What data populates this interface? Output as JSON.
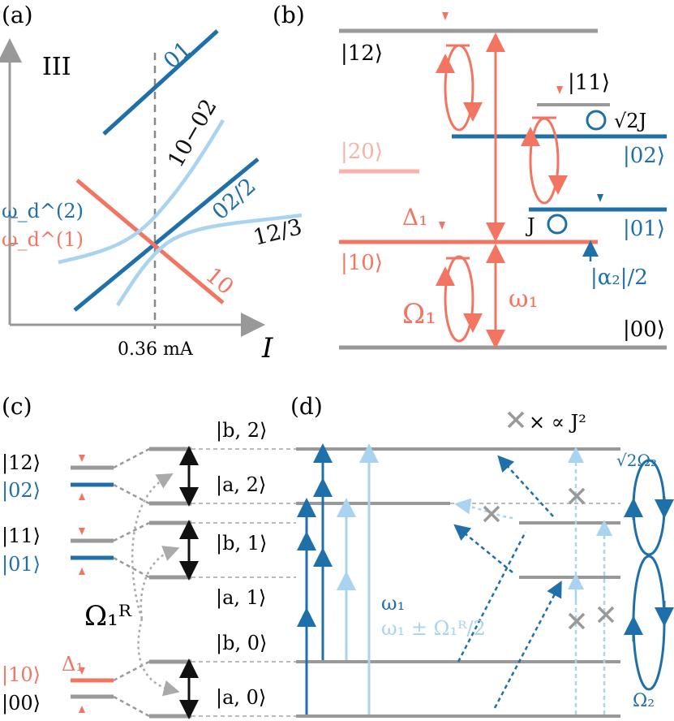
{
  "colors": {
    "dark_blue": "#1f6fa8",
    "light_blue": "#a9d3ee",
    "salmon": "#f27562",
    "pale_salmon": "#f7b3a7",
    "gray": "#999999",
    "black": "#111111"
  },
  "panel_a": {
    "label": "(a)",
    "regime": "III",
    "axis_x": "I",
    "tick_x": "0.36 mA",
    "y_tick_2": "ω_d^(2)",
    "y_tick_1": "ω_d^(1)",
    "line_labels": {
      "l01": "01",
      "l1002": "10−02",
      "l022": "02/2",
      "l123": "12/3",
      "l10": "10"
    }
  },
  "panel_b": {
    "label": "(b)",
    "levels": {
      "k12": "|12⟩",
      "k11": "|11⟩",
      "k20": "|20⟩",
      "k02": "|02⟩",
      "k01": "|01⟩",
      "k10": "|10⟩",
      "k00": "|00⟩"
    },
    "symbols": {
      "delta1": "Δ₁",
      "sqrt2J": "√2J",
      "J": "J",
      "alpha2": "|α₂|/2",
      "Omega1": "Ω₁",
      "omega1": "ω₁"
    }
  },
  "panel_c": {
    "label": "(c)",
    "left_kets": {
      "k12": "|12⟩",
      "k02": "|02⟩",
      "k11": "|11⟩",
      "k01": "|01⟩",
      "k10": "|10⟩",
      "k00": "|00⟩"
    },
    "right_kets": {
      "b2": "|b, 2⟩",
      "a2": "|a, 2⟩",
      "b1": "|b, 1⟩",
      "a1": "|a, 1⟩",
      "b0": "|b, 0⟩",
      "a0": "|a, 0⟩"
    },
    "omega_R": "Ω₁ᴿ",
    "delta1": "Δ₁"
  },
  "panel_d": {
    "label": "(d)",
    "propto": "× ∝ J²",
    "omega1": "ω₁",
    "omega1_pm": "ω₁ ± Ω₁ᴿ/2",
    "sqrt2Omega2": "√2Ω₂",
    "Omega2": "Ω₂"
  }
}
